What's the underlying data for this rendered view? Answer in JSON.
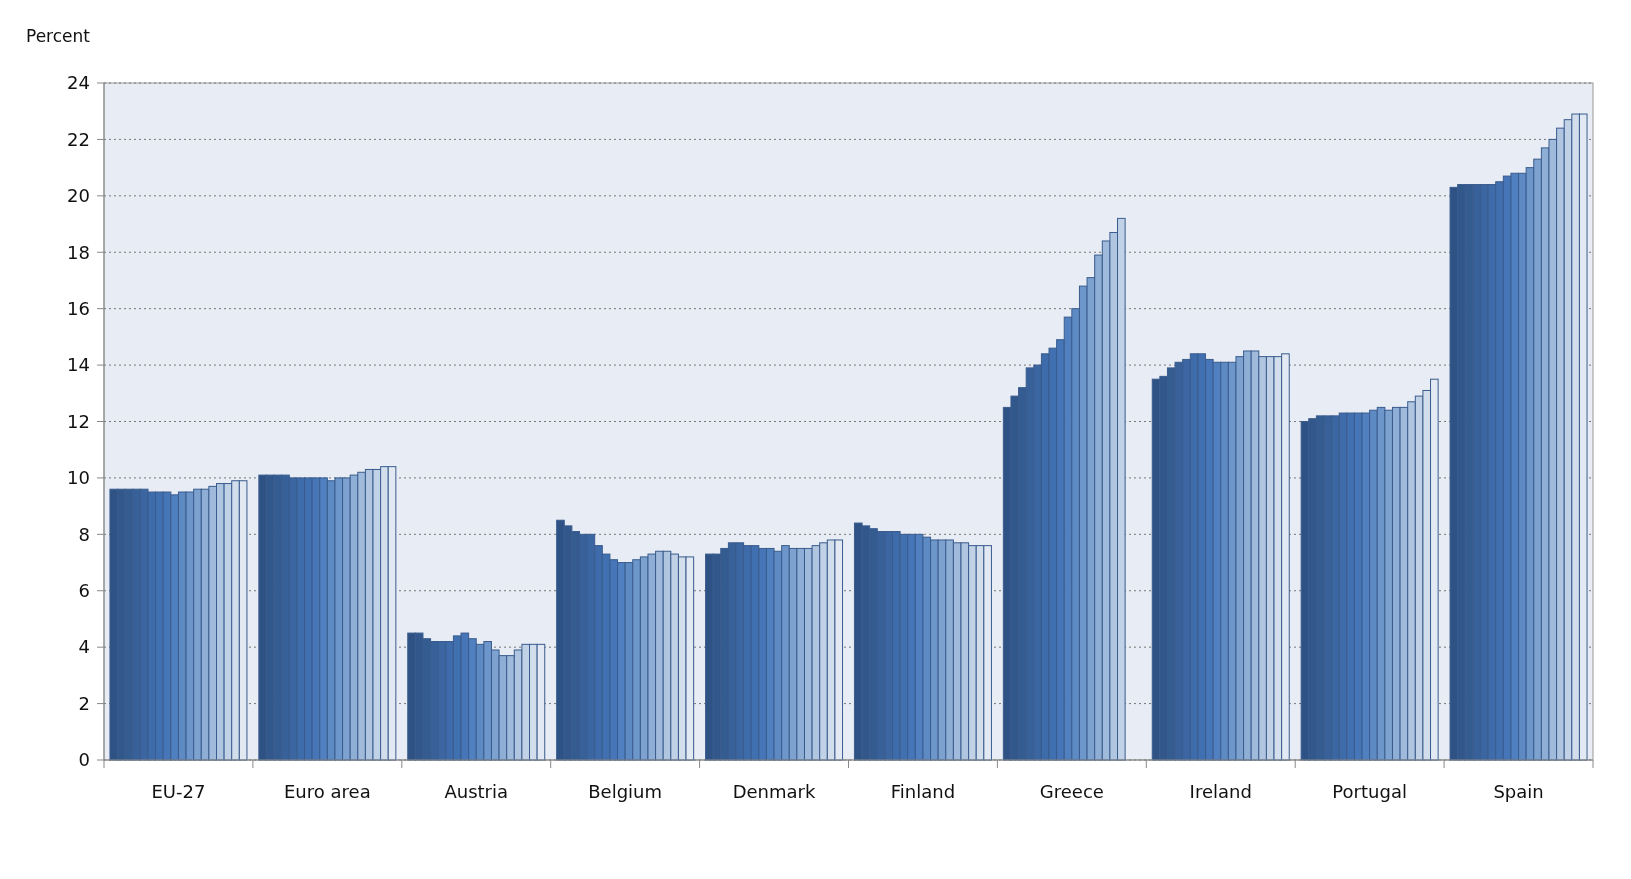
{
  "chart_data": {
    "type": "bar",
    "ylabel": "Percent",
    "categories": [
      "EU-27",
      "Euro area",
      "Austria",
      "Belgium",
      "Denmark",
      "Finland",
      "Greece",
      "Ireland",
      "Portugal",
      "Spain"
    ],
    "ylim": [
      0,
      24
    ],
    "yticks": [
      0,
      2,
      4,
      6,
      8,
      10,
      12,
      14,
      16,
      18,
      20,
      22,
      24
    ],
    "grid": "y",
    "series": [
      {
        "color": "#2e5283",
        "values": [
          9.6,
          10.1,
          4.5,
          8.5,
          7.3,
          8.4,
          12.5,
          13.5,
          12.0,
          20.3
        ]
      },
      {
        "color": "#32578a",
        "values": [
          9.6,
          10.1,
          4.5,
          8.3,
          7.3,
          8.3,
          12.9,
          13.6,
          12.1,
          20.4
        ]
      },
      {
        "color": "#355c91",
        "values": [
          9.6,
          10.1,
          4.3,
          8.1,
          7.5,
          8.2,
          13.2,
          13.9,
          12.2,
          20.4
        ]
      },
      {
        "color": "#386199",
        "values": [
          9.6,
          10.1,
          4.2,
          8.0,
          7.7,
          8.1,
          13.9,
          14.1,
          12.2,
          20.4
        ]
      },
      {
        "color": "#3b66a1",
        "values": [
          9.6,
          10.0,
          4.2,
          8.0,
          7.7,
          8.1,
          14.0,
          14.2,
          12.2,
          20.4
        ]
      },
      {
        "color": "#3e6ba9",
        "values": [
          9.5,
          10.0,
          4.2,
          7.6,
          7.6,
          8.1,
          14.4,
          14.4,
          12.3,
          20.4
        ]
      },
      {
        "color": "#4170b0",
        "values": [
          9.5,
          10.0,
          4.4,
          7.3,
          7.6,
          8.0,
          14.6,
          14.4,
          12.3,
          20.5
        ]
      },
      {
        "color": "#4676b8",
        "values": [
          9.5,
          10.0,
          4.5,
          7.1,
          7.5,
          8.0,
          14.9,
          14.2,
          12.3,
          20.7
        ]
      },
      {
        "color": "#5080c0",
        "values": [
          9.4,
          10.0,
          4.3,
          7.0,
          7.5,
          8.0,
          15.7,
          14.1,
          12.3,
          20.8
        ]
      },
      {
        "color": "#5e8ac4",
        "values": [
          9.5,
          9.9,
          4.1,
          7.0,
          7.4,
          7.9,
          16.0,
          14.1,
          12.4,
          20.8
        ]
      },
      {
        "color": "#6d96ca",
        "values": [
          9.5,
          10.0,
          4.2,
          7.1,
          7.6,
          7.8,
          16.8,
          14.1,
          12.5,
          21.0
        ]
      },
      {
        "color": "#7da2cf",
        "values": [
          9.6,
          10.0,
          3.9,
          7.2,
          7.5,
          7.8,
          17.1,
          14.3,
          12.4,
          21.3
        ]
      },
      {
        "color": "#8eaed5",
        "values": [
          9.6,
          10.1,
          3.7,
          7.3,
          7.5,
          7.8,
          17.9,
          14.5,
          12.5,
          21.7
        ]
      },
      {
        "color": "#9fbada",
        "values": [
          9.7,
          10.2,
          3.7,
          7.4,
          7.5,
          7.7,
          18.4,
          14.5,
          12.5,
          22.0
        ]
      },
      {
        "color": "#b0c6e0",
        "values": [
          9.8,
          10.3,
          3.9,
          7.4,
          7.6,
          7.7,
          18.7,
          14.3,
          12.7,
          22.4
        ]
      },
      {
        "color": "#c1d2e6",
        "values": [
          9.8,
          10.3,
          4.1,
          7.3,
          7.7,
          7.6,
          19.2,
          14.3,
          12.9,
          22.7
        ]
      },
      {
        "color": "#d2deec",
        "values": [
          9.9,
          10.4,
          4.1,
          7.2,
          7.8,
          7.6,
          null,
          14.3,
          13.1,
          22.9
        ]
      },
      {
        "color": "#e2e9f3",
        "values": [
          9.9,
          10.4,
          4.1,
          7.2,
          7.8,
          7.6,
          null,
          14.4,
          13.5,
          22.9
        ]
      }
    ]
  }
}
